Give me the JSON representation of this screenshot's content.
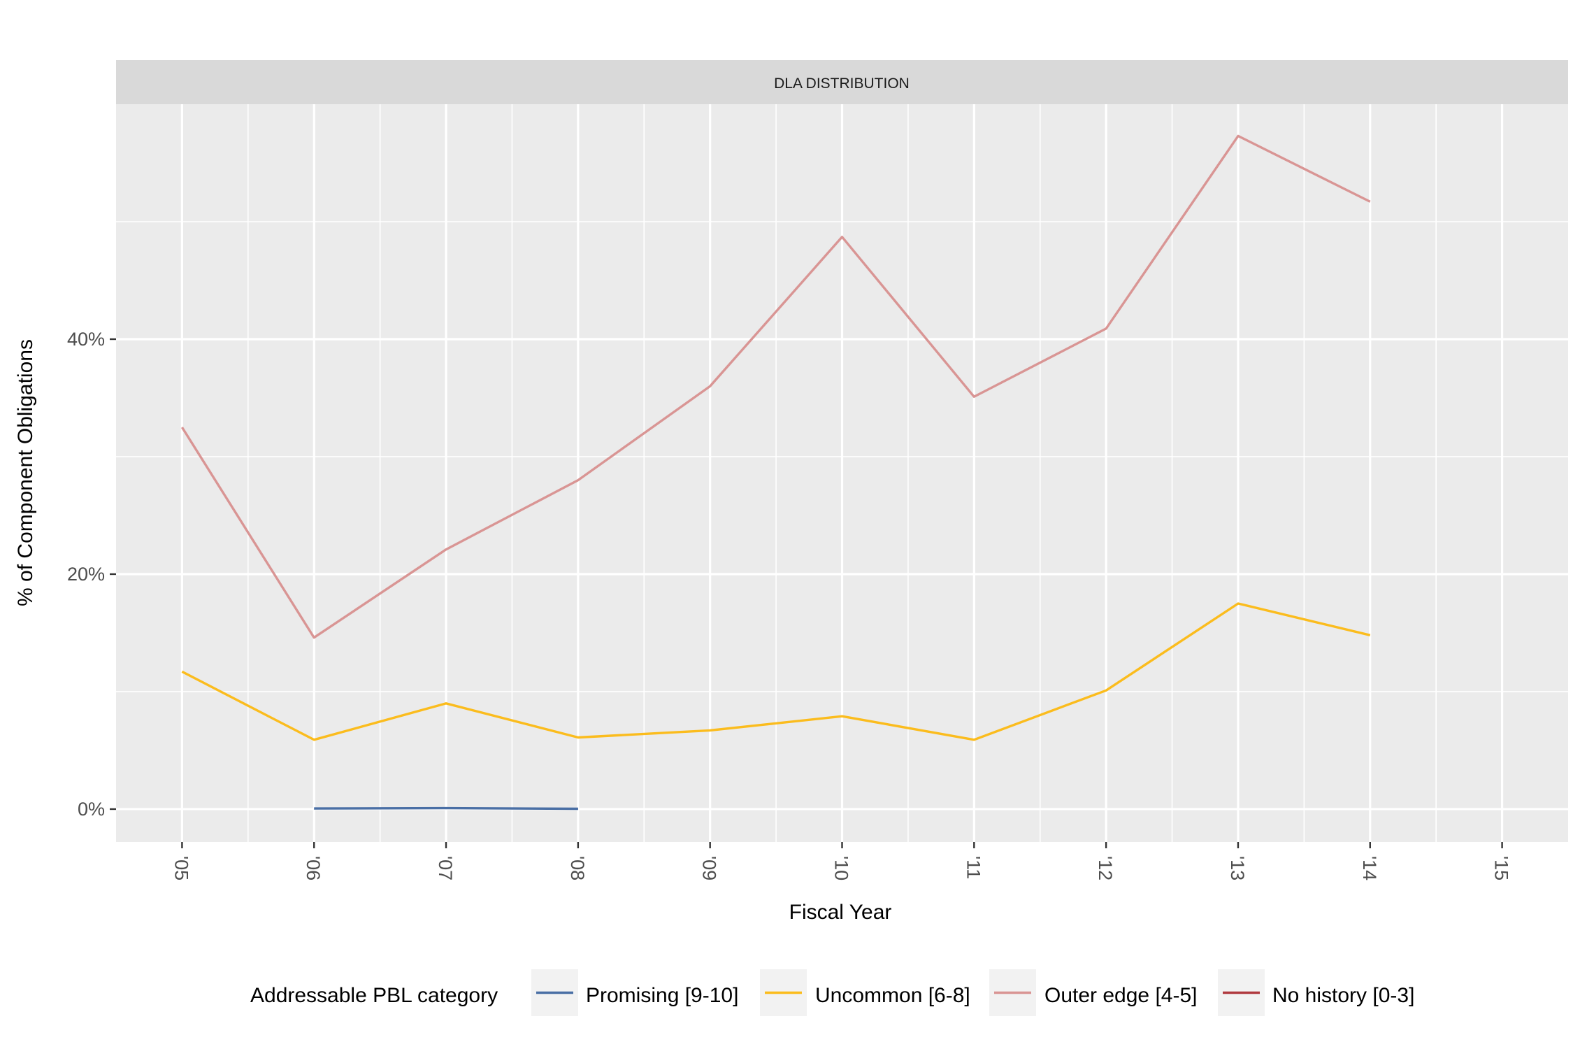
{
  "chart_data": {
    "type": "line",
    "title": "",
    "facet_label": "DLA DISTRIBUTION",
    "xlabel": "Fiscal Year",
    "ylabel": "% of Component Obligations",
    "x": [
      "'05",
      "'06",
      "'07",
      "'08",
      "'09",
      "'10",
      "'11",
      "'12",
      "'13",
      "'14",
      "'15"
    ],
    "x_ticks": [
      "'05",
      "'06",
      "'07",
      "'08",
      "'09",
      "'10",
      "'11",
      "'12",
      "'13",
      "'14",
      "'15"
    ],
    "y_ticks": [
      {
        "value": 0,
        "label": "0%"
      },
      {
        "value": 20,
        "label": "20%"
      },
      {
        "value": 40,
        "label": "40%"
      }
    ],
    "ylim": [
      -2.8,
      60
    ],
    "grid": true,
    "legend": {
      "title": "Addressable PBL category",
      "position": "bottom",
      "entries": [
        {
          "name": "Promising [9-10]",
          "color": "#4a6fa5"
        },
        {
          "name": "Uncommon [6-8]",
          "color": "#fbbc1d"
        },
        {
          "name": "Outer edge [4-5]",
          "color": "#d99594"
        },
        {
          "name": "No history [0-3]",
          "color": "#b03a3f"
        }
      ]
    },
    "series": [
      {
        "name": "Promising [9-10]",
        "color": "#4a6fa5",
        "values": [
          null,
          0.05,
          0.08,
          0.03,
          null,
          null,
          null,
          null,
          null,
          null,
          null
        ]
      },
      {
        "name": "Uncommon [6-8]",
        "color": "#fbbc1d",
        "values": [
          11.7,
          5.9,
          9.0,
          6.1,
          6.7,
          7.9,
          5.9,
          10.1,
          17.5,
          14.8,
          null
        ]
      },
      {
        "name": "Outer edge [4-5]",
        "color": "#d99594",
        "values": [
          32.5,
          14.6,
          22.1,
          28.0,
          36.0,
          48.7,
          35.1,
          40.9,
          57.3,
          51.7,
          null
        ]
      },
      {
        "name": "No history [0-3]",
        "color": "#b03a3f",
        "values": [
          null,
          null,
          null,
          null,
          null,
          null,
          null,
          null,
          null,
          null,
          null
        ]
      }
    ]
  }
}
